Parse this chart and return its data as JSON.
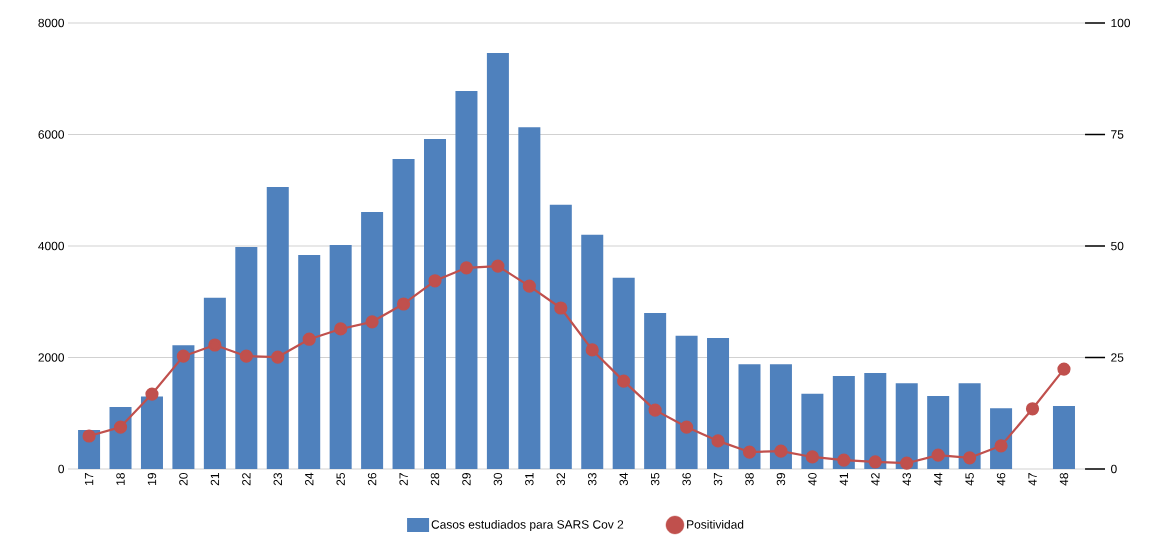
{
  "chart_data": {
    "type": "bar",
    "categories": [
      "17",
      "18",
      "19",
      "20",
      "21",
      "22",
      "23",
      "24",
      "25",
      "26",
      "27",
      "28",
      "29",
      "30",
      "31",
      "32",
      "33",
      "34",
      "35",
      "36",
      "37",
      "38",
      "39",
      "40",
      "41",
      "42",
      "43",
      "44",
      "45",
      "46",
      "47",
      "48"
    ],
    "series": [
      {
        "name": "Casos estudiados para SARS Cov 2",
        "color": "#4f81bd",
        "values": [
          700,
          1110,
          1300,
          2220,
          3070,
          3980,
          5060,
          3840,
          4020,
          4610,
          5560,
          5920,
          6780,
          7460,
          6130,
          4740,
          4200,
          3430,
          2800,
          2390,
          2350,
          1880,
          1880,
          1350,
          1670,
          1720,
          1540,
          1310,
          1540,
          1090,
          null,
          1130
        ]
      },
      {
        "name": "Positividad",
        "type": "line",
        "axis": "y2",
        "color": "#c0504d",
        "marker": "circle",
        "values": [
          7.4,
          9.4,
          16.8,
          25.3,
          27.8,
          25.3,
          25.1,
          29.1,
          31.4,
          33.0,
          37.0,
          42.2,
          45.1,
          45.5,
          41.0,
          36.1,
          26.7,
          19.7,
          13.2,
          9.4,
          6.3,
          3.8,
          4.0,
          2.7,
          2.0,
          1.6,
          1.3,
          3.1,
          2.5,
          5.2,
          13.5,
          22.4
        ]
      }
    ],
    "ylim": [
      0,
      8000
    ],
    "yticks": [
      0,
      2000,
      4000,
      6000,
      8000
    ],
    "y2lim": [
      0,
      100
    ],
    "y2ticks": [
      0,
      25,
      50,
      75,
      100
    ],
    "grid": "y",
    "legend": "bottom"
  }
}
